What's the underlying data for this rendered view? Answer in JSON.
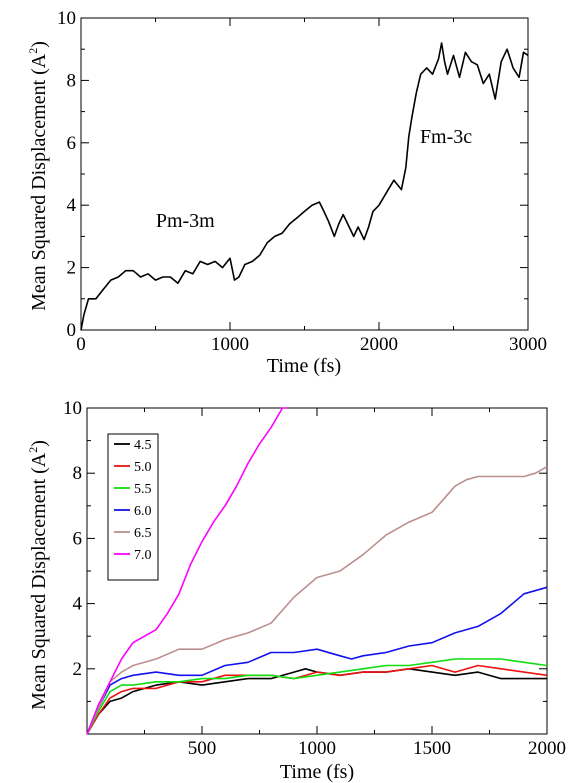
{
  "chart_data": [
    {
      "type": "line",
      "xlabel": "Time (fs)",
      "ylabel": "Mean Squared Displacement (A",
      "ylabel_sup": "2",
      "ylabel_close": ")",
      "xlim": [
        0,
        3000
      ],
      "ylim": [
        0,
        10
      ],
      "xticks": [
        0,
        1000,
        2000,
        3000
      ],
      "yticks": [
        0,
        2,
        4,
        6,
        8,
        10
      ],
      "grid": false,
      "annotations": [
        {
          "text": "Pm-3m",
          "x": 700,
          "y": 3.3
        },
        {
          "text": "Fm-3c",
          "x": 2450,
          "y": 6.0
        }
      ],
      "series": [
        {
          "color": "#000000",
          "x": [
            0,
            20,
            50,
            100,
            150,
            200,
            250,
            300,
            350,
            400,
            450,
            500,
            550,
            600,
            650,
            700,
            750,
            800,
            850,
            900,
            950,
            1000,
            1030,
            1060,
            1100,
            1150,
            1200,
            1250,
            1300,
            1350,
            1400,
            1450,
            1500,
            1550,
            1600,
            1630,
            1660,
            1700,
            1730,
            1760,
            1800,
            1830,
            1860,
            1900,
            1930,
            1960,
            2000,
            2050,
            2100,
            2150,
            2180,
            2200,
            2220,
            2250,
            2280,
            2320,
            2360,
            2400,
            2420,
            2440,
            2460,
            2500,
            2540,
            2580,
            2620,
            2660,
            2700,
            2740,
            2780,
            2820,
            2860,
            2900,
            2940,
            2970,
            3000
          ],
          "y": [
            0,
            0.5,
            1.0,
            1.0,
            1.3,
            1.6,
            1.7,
            1.9,
            1.9,
            1.7,
            1.8,
            1.6,
            1.7,
            1.7,
            1.5,
            1.9,
            1.8,
            2.2,
            2.1,
            2.2,
            2.0,
            2.3,
            1.6,
            1.7,
            2.1,
            2.2,
            2.4,
            2.8,
            3.0,
            3.1,
            3.4,
            3.6,
            3.8,
            4.0,
            4.1,
            3.8,
            3.5,
            3.0,
            3.4,
            3.7,
            3.3,
            3.0,
            3.3,
            2.9,
            3.3,
            3.8,
            4.0,
            4.4,
            4.8,
            4.5,
            5.2,
            6.2,
            6.8,
            7.6,
            8.2,
            8.4,
            8.2,
            8.7,
            9.2,
            8.6,
            8.2,
            8.8,
            8.1,
            8.9,
            8.6,
            8.5,
            7.9,
            8.2,
            7.4,
            8.6,
            9.0,
            8.4,
            8.1,
            8.9,
            8.8
          ]
        }
      ]
    },
    {
      "type": "line",
      "xlabel": "Time (fs)",
      "ylabel": "Mean Squared Displacement (A",
      "ylabel_sup": "2",
      "ylabel_close": ")",
      "xlim": [
        0,
        2000
      ],
      "ylim": [
        0,
        10
      ],
      "xticks": [
        500,
        1000,
        1500,
        2000
      ],
      "yticks": [
        2,
        4,
        6,
        8,
        10
      ],
      "grid": false,
      "legend": "top-left",
      "series": [
        {
          "name": "4.5",
          "color": "#000000",
          "x": [
            0,
            50,
            100,
            150,
            200,
            300,
            400,
            500,
            600,
            700,
            800,
            900,
            950,
            1000,
            1100,
            1200,
            1300,
            1400,
            1500,
            1600,
            1700,
            1800,
            1900,
            2000
          ],
          "y": [
            0,
            0.6,
            1.0,
            1.1,
            1.3,
            1.5,
            1.6,
            1.5,
            1.6,
            1.7,
            1.7,
            1.9,
            2.0,
            1.9,
            1.8,
            1.9,
            1.9,
            2.0,
            1.9,
            1.8,
            1.9,
            1.7,
            1.7,
            1.7
          ]
        },
        {
          "name": "5.0",
          "color": "#ee1111",
          "x": [
            0,
            50,
            100,
            150,
            200,
            300,
            400,
            500,
            600,
            700,
            800,
            900,
            1000,
            1100,
            1200,
            1300,
            1400,
            1500,
            1600,
            1700,
            1800,
            1900,
            2000
          ],
          "y": [
            0,
            0.6,
            1.1,
            1.3,
            1.4,
            1.4,
            1.6,
            1.6,
            1.8,
            1.8,
            1.8,
            1.7,
            1.9,
            1.8,
            1.9,
            1.9,
            2.0,
            2.1,
            1.9,
            2.1,
            2.0,
            1.9,
            1.8
          ]
        },
        {
          "name": "5.5",
          "color": "#11dd11",
          "x": [
            0,
            50,
            100,
            150,
            200,
            300,
            400,
            500,
            600,
            700,
            800,
            900,
            1000,
            1100,
            1200,
            1300,
            1400,
            1500,
            1600,
            1700,
            1800,
            1900,
            2000
          ],
          "y": [
            0,
            0.7,
            1.3,
            1.5,
            1.5,
            1.6,
            1.6,
            1.7,
            1.7,
            1.8,
            1.8,
            1.7,
            1.8,
            1.9,
            2.0,
            2.1,
            2.1,
            2.2,
            2.3,
            2.3,
            2.3,
            2.2,
            2.1
          ]
        },
        {
          "name": "6.0",
          "color": "#1111ee",
          "x": [
            0,
            50,
            100,
            150,
            200,
            300,
            400,
            500,
            600,
            700,
            800,
            900,
            1000,
            1100,
            1150,
            1200,
            1300,
            1400,
            1500,
            1600,
            1700,
            1800,
            1900,
            2000
          ],
          "y": [
            0,
            0.8,
            1.5,
            1.7,
            1.8,
            1.9,
            1.8,
            1.8,
            2.1,
            2.2,
            2.5,
            2.5,
            2.6,
            2.4,
            2.3,
            2.4,
            2.5,
            2.7,
            2.8,
            3.1,
            3.3,
            3.7,
            4.3,
            4.5
          ]
        },
        {
          "name": "6.5",
          "color": "#bc8f8f",
          "x": [
            0,
            50,
            100,
            150,
            200,
            300,
            400,
            500,
            600,
            700,
            800,
            900,
            1000,
            1100,
            1200,
            1300,
            1400,
            1500,
            1550,
            1600,
            1650,
            1700,
            1800,
            1900,
            1950,
            2000
          ],
          "y": [
            0,
            0.8,
            1.6,
            1.9,
            2.1,
            2.3,
            2.6,
            2.6,
            2.9,
            3.1,
            3.4,
            4.2,
            4.8,
            5.0,
            5.5,
            6.1,
            6.5,
            6.8,
            7.2,
            7.6,
            7.8,
            7.9,
            7.9,
            7.9,
            8.0,
            8.2
          ]
        },
        {
          "name": "7.0",
          "color": "#ff00ff",
          "x": [
            0,
            50,
            100,
            150,
            200,
            250,
            300,
            350,
            400,
            450,
            500,
            550,
            600,
            650,
            700,
            750,
            800,
            850,
            870
          ],
          "y": [
            0,
            0.9,
            1.6,
            2.3,
            2.8,
            3.0,
            3.2,
            3.7,
            4.3,
            5.2,
            5.9,
            6.5,
            7.0,
            7.6,
            8.3,
            8.9,
            9.4,
            10.0,
            10.0
          ]
        }
      ]
    }
  ]
}
